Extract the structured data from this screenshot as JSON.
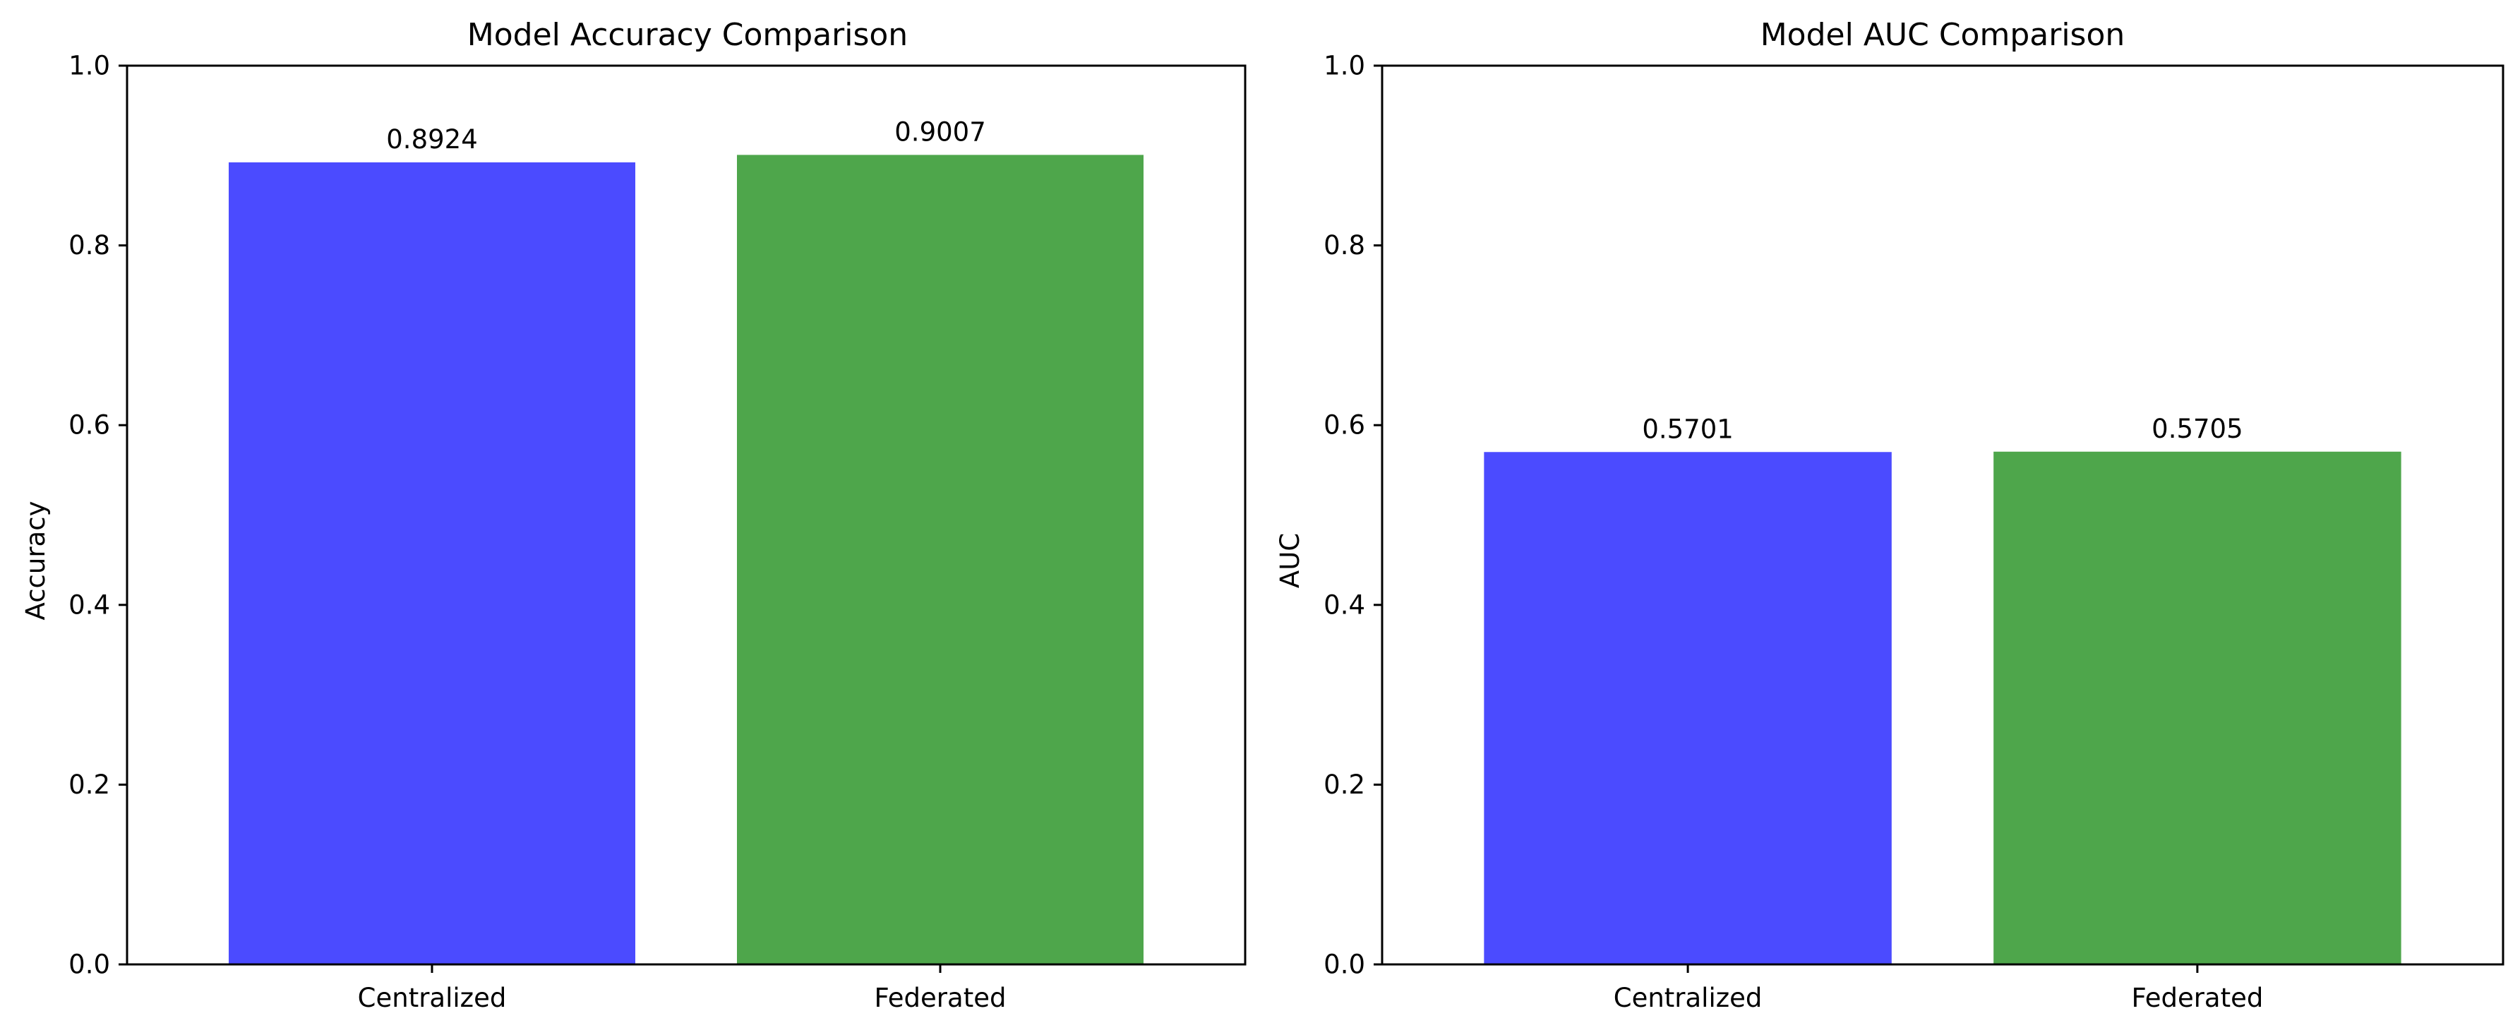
{
  "chart_data": [
    {
      "type": "bar",
      "title": "Model Accuracy Comparison",
      "xlabel": "",
      "ylabel": "Accuracy",
      "categories": [
        "Centralized",
        "Federated"
      ],
      "values": [
        0.8924,
        0.9007
      ],
      "data_labels": [
        "0.8924",
        "0.9007"
      ],
      "colors": [
        "#4b4bff",
        "#4ea64b"
      ],
      "ylim": [
        0,
        1.0
      ],
      "yticks": [
        0.0,
        0.2,
        0.4,
        0.6,
        0.8,
        1.0
      ],
      "ytick_labels": [
        "0.0",
        "0.2",
        "0.4",
        "0.6",
        "0.8",
        "1.0"
      ],
      "grid": false,
      "legend": "none"
    },
    {
      "type": "bar",
      "title": "Model AUC Comparison",
      "xlabel": "",
      "ylabel": "AUC",
      "categories": [
        "Centralized",
        "Federated"
      ],
      "values": [
        0.5701,
        0.5705
      ],
      "data_labels": [
        "0.5701",
        "0.5705"
      ],
      "colors": [
        "#4b4bff",
        "#4ea64b"
      ],
      "ylim": [
        0,
        1.0
      ],
      "yticks": [
        0.0,
        0.2,
        0.4,
        0.6,
        0.8,
        1.0
      ],
      "ytick_labels": [
        "0.0",
        "0.2",
        "0.4",
        "0.6",
        "0.8",
        "1.0"
      ],
      "grid": false,
      "legend": "none"
    }
  ]
}
